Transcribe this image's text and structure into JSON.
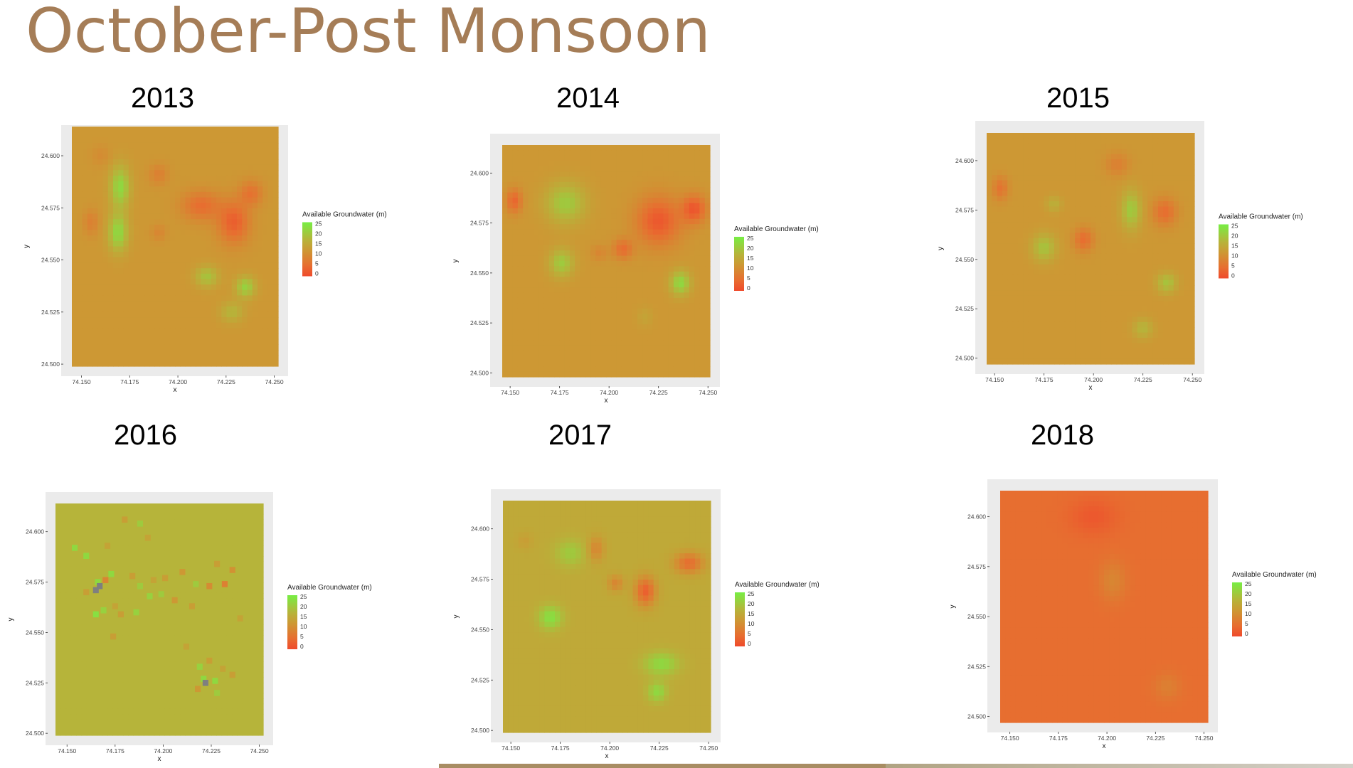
{
  "title": "October-Post Monsoon",
  "chart_data": [
    {
      "type": "heatmap",
      "year": "2013",
      "title": "2013",
      "xlabel": "x",
      "ylabel": "y",
      "x_ticks": [
        "74.150",
        "74.175",
        "74.200",
        "74.225",
        "74.250"
      ],
      "y_ticks": [
        "24.600",
        "24.575",
        "24.550",
        "24.525",
        "24.500"
      ],
      "xlim": [
        74.145,
        74.252
      ],
      "ylim": [
        24.499,
        24.614
      ],
      "base_value": 12,
      "legend": {
        "title": "Available Groundwater (m)",
        "ticks": [
          "25",
          "20",
          "15",
          "10",
          "5",
          "0"
        ],
        "low_color": "#ef4a2c",
        "mid_color": "#b6b43a",
        "high_color": "#77ee44"
      },
      "blobs": [
        [
          74.17,
          24.585,
          0.005,
          0.01,
          22
        ],
        [
          74.169,
          24.563,
          0.005,
          0.009,
          22
        ],
        [
          74.19,
          24.591,
          0.005,
          0.005,
          8
        ],
        [
          74.212,
          24.576,
          0.01,
          0.007,
          5
        ],
        [
          74.229,
          24.568,
          0.008,
          0.01,
          3
        ],
        [
          74.238,
          24.582,
          0.006,
          0.006,
          6
        ],
        [
          74.155,
          24.568,
          0.004,
          0.006,
          8
        ],
        [
          74.16,
          24.6,
          0.005,
          0.005,
          10
        ],
        [
          74.215,
          24.542,
          0.006,
          0.005,
          19
        ],
        [
          74.235,
          24.537,
          0.005,
          0.005,
          21
        ],
        [
          74.228,
          24.525,
          0.006,
          0.005,
          17
        ],
        [
          74.19,
          24.563,
          0.004,
          0.004,
          9
        ]
      ]
    },
    {
      "type": "heatmap",
      "year": "2014",
      "title": "2014",
      "xlabel": "x",
      "ylabel": "y",
      "x_ticks": [
        "74.150",
        "74.175",
        "74.200",
        "74.225",
        "74.250"
      ],
      "y_ticks": [
        "24.600",
        "24.575",
        "24.550",
        "24.525",
        "24.500"
      ],
      "xlim": [
        74.146,
        74.251
      ],
      "ylim": [
        24.498,
        24.614
      ],
      "base_value": 12,
      "legend": {
        "title": "Available Groundwater (m)",
        "ticks": [
          "25",
          "20",
          "15",
          "10",
          "5",
          "0"
        ],
        "low_color": "#ef4a2c",
        "mid_color": "#b6b43a",
        "high_color": "#77ee44"
      },
      "blobs": [
        [
          74.152,
          24.586,
          0.004,
          0.006,
          4
        ],
        [
          74.178,
          24.585,
          0.01,
          0.01,
          20
        ],
        [
          74.176,
          24.555,
          0.006,
          0.007,
          20
        ],
        [
          74.225,
          24.576,
          0.011,
          0.012,
          2
        ],
        [
          74.243,
          24.582,
          0.006,
          0.007,
          2
        ],
        [
          74.207,
          24.562,
          0.005,
          0.005,
          5
        ],
        [
          74.236,
          24.545,
          0.005,
          0.006,
          22
        ],
        [
          74.218,
          24.528,
          0.004,
          0.005,
          14
        ],
        [
          74.195,
          24.56,
          0.004,
          0.004,
          9
        ]
      ]
    },
    {
      "type": "heatmap",
      "year": "2015",
      "title": "2015",
      "xlabel": "x",
      "ylabel": "y",
      "x_ticks": [
        "74.150",
        "74.175",
        "74.200",
        "74.225",
        "74.250"
      ],
      "y_ticks": [
        "24.600",
        "24.575",
        "24.550",
        "24.525",
        "24.500"
      ],
      "xlim": [
        74.146,
        74.251
      ],
      "ylim": [
        24.497,
        24.614
      ],
      "base_value": 12,
      "legend": {
        "title": "Available Groundwater (m)",
        "ticks": [
          "25",
          "20",
          "15",
          "10",
          "5",
          "0"
        ],
        "low_color": "#ef4a2c",
        "mid_color": "#b6b43a",
        "high_color": "#77ee44"
      },
      "blobs": [
        [
          74.153,
          24.586,
          0.004,
          0.006,
          6
        ],
        [
          74.175,
          24.556,
          0.006,
          0.007,
          19
        ],
        [
          74.195,
          24.56,
          0.005,
          0.006,
          5
        ],
        [
          74.212,
          24.598,
          0.006,
          0.006,
          8
        ],
        [
          74.219,
          24.575,
          0.005,
          0.01,
          20
        ],
        [
          74.236,
          24.574,
          0.006,
          0.007,
          5
        ],
        [
          74.18,
          24.578,
          0.004,
          0.004,
          16
        ],
        [
          74.237,
          24.538,
          0.005,
          0.005,
          19
        ],
        [
          74.225,
          24.515,
          0.005,
          0.005,
          17
        ]
      ]
    },
    {
      "type": "heatmap",
      "year": "2016",
      "title": "2016",
      "xlabel": "x",
      "ylabel": "y",
      "x_ticks": [
        "74.150",
        "74.175",
        "74.200",
        "74.225",
        "74.250"
      ],
      "y_ticks": [
        "24.600",
        "24.575",
        "24.550",
        "24.525",
        "24.500"
      ],
      "xlim": [
        74.144,
        74.252
      ],
      "ylim": [
        24.499,
        24.614
      ],
      "base_value": 17,
      "legend": {
        "title": "Available Groundwater (m)",
        "ticks": [
          "25",
          "20",
          "15",
          "10",
          "5",
          "0"
        ],
        "low_color": "#ef4a2c",
        "mid_color": "#b6b43a",
        "high_color": "#77ee44"
      },
      "blobs": []
    },
    {
      "type": "heatmap",
      "year": "2017",
      "title": "2017",
      "xlabel": "x",
      "ylabel": "y",
      "x_ticks": [
        "74.150",
        "74.175",
        "74.200",
        "74.225",
        "74.250"
      ],
      "y_ticks": [
        "24.600",
        "24.575",
        "24.550",
        "24.525",
        "24.500"
      ],
      "xlim": [
        74.146,
        74.251
      ],
      "ylim": [
        24.499,
        24.614
      ],
      "base_value": 15,
      "legend": {
        "title": "Available Groundwater (m)",
        "ticks": [
          "25",
          "20",
          "15",
          "10",
          "5",
          "0"
        ],
        "low_color": "#ef4a2c",
        "mid_color": "#b6b43a",
        "high_color": "#77ee44"
      },
      "blobs": [
        [
          74.17,
          24.556,
          0.006,
          0.006,
          23
        ],
        [
          74.18,
          24.588,
          0.008,
          0.007,
          20
        ],
        [
          74.193,
          24.59,
          0.004,
          0.006,
          9
        ],
        [
          74.218,
          24.569,
          0.005,
          0.007,
          3
        ],
        [
          74.24,
          24.583,
          0.007,
          0.005,
          5
        ],
        [
          74.226,
          24.533,
          0.009,
          0.006,
          22
        ],
        [
          74.224,
          24.519,
          0.005,
          0.005,
          22
        ],
        [
          74.203,
          24.573,
          0.004,
          0.004,
          9
        ],
        [
          74.157,
          24.594,
          0.004,
          0.004,
          13
        ]
      ]
    },
    {
      "type": "heatmap",
      "year": "2018",
      "title": "2018",
      "xlabel": "x",
      "ylabel": "y",
      "x_ticks": [
        "74.150",
        "74.175",
        "74.200",
        "74.225",
        "74.250"
      ],
      "y_ticks": [
        "24.600",
        "24.575",
        "24.550",
        "24.525",
        "24.500"
      ],
      "xlim": [
        74.145,
        74.252
      ],
      "ylim": [
        24.497,
        24.613
      ],
      "base_value": 5,
      "legend": {
        "title": "Available Groundwater (m)",
        "ticks": [
          "25",
          "20",
          "15",
          "10",
          "5",
          "0"
        ],
        "low_color": "#ef4a2c",
        "mid_color": "#b6b43a",
        "high_color": "#77ee44"
      },
      "blobs": [
        [
          74.193,
          24.6,
          0.012,
          0.009,
          2
        ],
        [
          74.203,
          24.568,
          0.007,
          0.01,
          9
        ],
        [
          74.231,
          24.515,
          0.007,
          0.007,
          8
        ],
        [
          74.155,
          24.56,
          0.006,
          0.01,
          5
        ]
      ]
    }
  ],
  "pixels_2016": {
    "note": "2016 panel rendered as coarse raster cells; value per cell",
    "cells": [
      [
        74.154,
        24.592,
        22
      ],
      [
        74.16,
        24.588,
        22
      ],
      [
        74.166,
        24.575,
        22
      ],
      [
        74.17,
        24.576,
        9
      ],
      [
        74.173,
        24.579,
        22
      ],
      [
        74.169,
        24.561,
        21
      ],
      [
        74.165,
        24.559,
        23
      ],
      [
        74.175,
        24.563,
        14
      ],
      [
        74.184,
        24.578,
        13
      ],
      [
        74.188,
        24.573,
        20
      ],
      [
        74.193,
        24.568,
        21
      ],
      [
        74.186,
        24.56,
        21
      ],
      [
        74.178,
        24.559,
        13
      ],
      [
        74.195,
        24.576,
        14
      ],
      [
        74.201,
        24.577,
        13
      ],
      [
        74.21,
        24.58,
        12
      ],
      [
        74.217,
        24.574,
        20
      ],
      [
        74.224,
        24.573,
        10
      ],
      [
        74.232,
        24.574,
        8
      ],
      [
        74.236,
        24.581,
        11
      ],
      [
        74.228,
        24.584,
        13
      ],
      [
        74.188,
        24.604,
        20
      ],
      [
        74.192,
        24.597,
        14
      ],
      [
        74.18,
        24.606,
        13
      ],
      [
        74.171,
        24.593,
        14
      ],
      [
        74.215,
        24.563,
        13
      ],
      [
        74.224,
        24.536,
        13
      ],
      [
        74.219,
        24.533,
        21
      ],
      [
        74.221,
        24.527,
        22
      ],
      [
        74.227,
        24.526,
        22
      ],
      [
        74.231,
        24.532,
        14
      ],
      [
        74.236,
        24.529,
        13
      ],
      [
        74.212,
        24.543,
        14
      ],
      [
        74.218,
        24.522,
        12
      ],
      [
        74.228,
        24.52,
        20
      ],
      [
        74.16,
        24.57,
        13
      ],
      [
        74.206,
        24.566,
        12
      ],
      [
        74.199,
        24.569,
        20
      ],
      [
        74.174,
        24.548,
        13
      ],
      [
        74.24,
        24.557,
        14
      ]
    ],
    "na_cells": [
      [
        74.167,
        24.573
      ],
      [
        74.165,
        24.571
      ],
      [
        74.222,
        24.525
      ]
    ]
  }
}
